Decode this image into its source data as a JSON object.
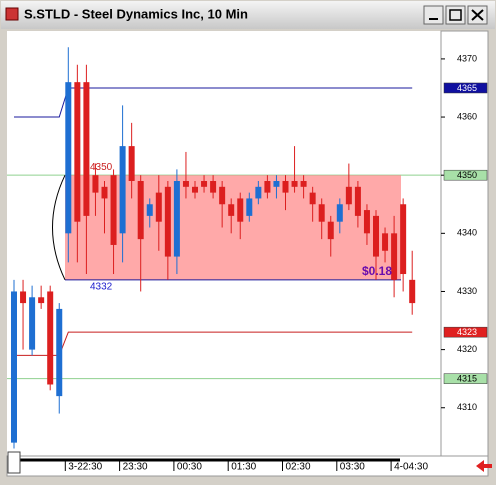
{
  "chart_data": {
    "type": "candlestick",
    "title": "S.STLD - Steel Dynamics Inc, 10 Min",
    "categories": [
      null,
      null,
      null,
      null,
      null,
      null,
      "3-22:30",
      null,
      null,
      null,
      null,
      null,
      "23:30",
      null,
      null,
      null,
      null,
      null,
      "00:30",
      null,
      null,
      null,
      null,
      null,
      "01:30",
      null,
      null,
      null,
      null,
      null,
      "02:30",
      null,
      null,
      null,
      null,
      null,
      "03:30",
      null,
      null,
      null,
      null,
      null,
      "4-04:30",
      null,
      null
    ],
    "open": [
      4304,
      4330,
      4320,
      4329,
      4330,
      4312,
      4340,
      4366,
      4366,
      4350,
      4348,
      4350,
      4340,
      4355,
      4349,
      4343,
      4347,
      4348,
      4336,
      4349,
      4348,
      4349,
      4349,
      4348,
      4345,
      4346,
      4343,
      4346,
      4349,
      4348,
      4349,
      4349,
      4349,
      4347,
      4345,
      4342,
      4342,
      4348,
      4348,
      4344,
      4343,
      4340,
      4340,
      4345,
      4332
    ],
    "high": [
      4332,
      4332,
      4331,
      4331,
      4331,
      4328,
      4372,
      4369,
      4369,
      4352,
      4349,
      4351,
      4362,
      4359,
      4350,
      4346,
      4350,
      4349,
      4351,
      4354,
      4349,
      4350,
      4350,
      4349,
      4346,
      4347,
      4347,
      4349,
      4350,
      4350,
      4350,
      4355,
      4350,
      4348,
      4346,
      4343,
      4346,
      4352,
      4349,
      4345,
      4344,
      4341,
      4343,
      4346,
      4337
    ],
    "low": [
      4303,
      4320,
      4319,
      4327,
      4313,
      4309,
      4335,
      4335,
      4333,
      4343,
      4340,
      4333,
      4335,
      4346,
      4330,
      4341,
      4337,
      4332,
      4333,
      4346,
      4346,
      4347,
      4346,
      4341,
      4340,
      4339,
      4342,
      4345,
      4346,
      4346,
      4344,
      4347,
      4346,
      4342,
      4339,
      4336,
      4340,
      4344,
      4341,
      4338,
      4332,
      4335,
      4329,
      4330,
      4326
    ],
    "close": [
      4330,
      4328,
      4329,
      4328,
      4314,
      4327,
      4366,
      4342,
      4343,
      4347,
      4346,
      4338,
      4355,
      4349,
      4339,
      4345,
      4342,
      4336,
      4349,
      4348,
      4347,
      4348,
      4347,
      4345,
      4343,
      4342,
      4346,
      4348,
      4347,
      4349,
      4347,
      4348,
      4348,
      4345,
      4342,
      4339,
      4345,
      4345,
      4343,
      4340,
      4336,
      4337,
      4332,
      4333,
      4328
    ],
    "up_color": "#1e6fd2",
    "down_color": "#dc1f1f",
    "series": [
      {
        "color": "#1a1a9c",
        "values": [
          4360,
          4360,
          4360,
          4360,
          4360,
          4360,
          4365,
          4365,
          4365,
          4365,
          4365,
          4365,
          4365,
          4365,
          4365,
          4365,
          4365,
          4365,
          4365,
          4365,
          4365,
          4365,
          4365,
          4365,
          4365,
          4365,
          4365,
          4365,
          4365,
          4365,
          4365,
          4365,
          4365,
          4365,
          4365,
          4365,
          4365,
          4365,
          4365,
          4365,
          4365,
          4365,
          4365,
          4365,
          4365
        ]
      },
      {
        "color": "#c81e1e",
        "values": [
          4319,
          4319,
          4319,
          4319,
          4319,
          4319,
          4323,
          4323,
          4323,
          4323,
          4323,
          4323,
          4323,
          4323,
          4323,
          4323,
          4323,
          4323,
          4323,
          4323,
          4323,
          4323,
          4323,
          4323,
          4323,
          4323,
          4323,
          4323,
          4323,
          4323,
          4323,
          4323,
          4323,
          4323,
          4323,
          4323,
          4323,
          4323,
          4323,
          4323,
          4323,
          4323,
          4323,
          4323,
          4323
        ]
      }
    ],
    "hlines": [
      {
        "value": 4350,
        "color": "#8fd08f"
      },
      {
        "value": 4315,
        "color": "#8fd08f"
      }
    ],
    "price_flags": [
      {
        "value": 4365,
        "color": "#1010a0",
        "text_color": "#ffffff"
      },
      {
        "value": 4350,
        "color": "#a8e0a8",
        "text_color": "#000000"
      },
      {
        "value": 4323,
        "color": "#e02020",
        "text_color": "#ffffff"
      },
      {
        "value": 4315,
        "color": "#a8e0a8",
        "text_color": "#000000"
      }
    ],
    "box": {
      "high": 4350,
      "low": 4332,
      "range_label": "$0.18",
      "color": "#ff8c8c"
    },
    "ylim": [
      4301.7,
      4374.8
    ],
    "yticks": [
      4310,
      4320,
      4330,
      4340,
      4350,
      4360,
      4370
    ]
  }
}
